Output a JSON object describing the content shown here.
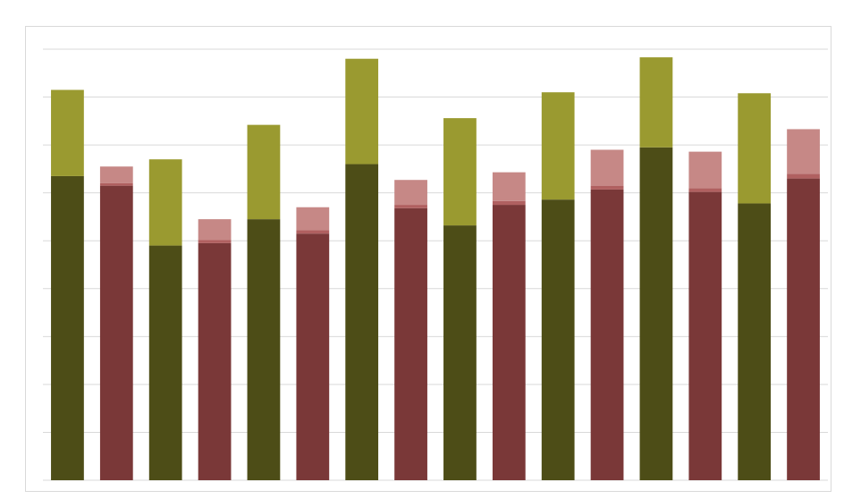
{
  "chart_data": {
    "type": "bar",
    "stacked": true,
    "ylim": [
      0,
      9
    ],
    "grid": true,
    "legend": "none",
    "title": "",
    "xlabel": "",
    "ylabel": "",
    "bars": [
      {
        "color_scheme": "olive",
        "base": 6.35,
        "segments": [
          1.8
        ]
      },
      {
        "color_scheme": "red",
        "base": 6.15,
        "segments": [
          0.05,
          0.35
        ]
      },
      {
        "color_scheme": "olive",
        "base": 4.9,
        "segments": [
          1.8
        ]
      },
      {
        "color_scheme": "red",
        "base": 4.95,
        "segments": [
          0.07,
          0.43
        ]
      },
      {
        "color_scheme": "olive",
        "base": 5.45,
        "segments": [
          1.97
        ]
      },
      {
        "color_scheme": "red",
        "base": 5.15,
        "segments": [
          0.07,
          0.48
        ]
      },
      {
        "color_scheme": "olive",
        "base": 6.6,
        "segments": [
          2.2
        ]
      },
      {
        "color_scheme": "red",
        "base": 5.68,
        "segments": [
          0.07,
          0.52
        ]
      },
      {
        "color_scheme": "olive",
        "base": 5.32,
        "segments": [
          2.24
        ]
      },
      {
        "color_scheme": "red",
        "base": 5.75,
        "segments": [
          0.08,
          0.6
        ]
      },
      {
        "color_scheme": "olive",
        "base": 5.86,
        "segments": [
          2.24
        ]
      },
      {
        "color_scheme": "red",
        "base": 6.07,
        "segments": [
          0.08,
          0.75
        ]
      },
      {
        "color_scheme": "olive",
        "base": 6.95,
        "segments": [
          1.88
        ]
      },
      {
        "color_scheme": "red",
        "base": 6.02,
        "segments": [
          0.08,
          0.76
        ]
      },
      {
        "color_scheme": "olive",
        "base": 5.78,
        "segments": [
          2.3
        ]
      },
      {
        "color_scheme": "red",
        "base": 6.3,
        "segments": [
          0.1,
          0.93
        ]
      }
    ],
    "colors": {
      "olive": [
        "#4d4d17",
        "#9a9a30"
      ],
      "red": [
        "#7a3838",
        "#b06060",
        "#c68886"
      ]
    },
    "gridline_color": "#d9d9d9"
  }
}
